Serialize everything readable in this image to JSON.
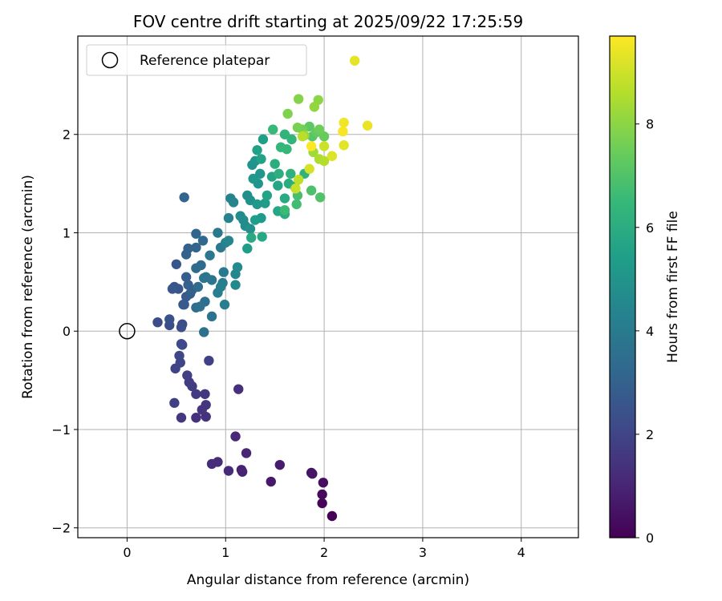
{
  "chart_data": {
    "type": "scatter",
    "title": "FOV centre drift starting at 2025/09/22 17:25:59",
    "xlabel": "Angular distance from reference (arcmin)",
    "ylabel": "Rotation from reference (arcmin)",
    "xlim": [
      -0.5,
      4.58
    ],
    "ylim": [
      -2.1,
      3.0
    ],
    "xticks": [
      {
        "value": 0,
        "label": "0"
      },
      {
        "value": 1,
        "label": "1"
      },
      {
        "value": 2,
        "label": "2"
      },
      {
        "value": 3,
        "label": "3"
      },
      {
        "value": 4,
        "label": "4"
      }
    ],
    "yticks": [
      {
        "value": -2,
        "label": "−2"
      },
      {
        "value": -1,
        "label": "−1"
      },
      {
        "value": 0,
        "label": "0"
      },
      {
        "value": 1,
        "label": "1"
      },
      {
        "value": 2,
        "label": "2"
      }
    ],
    "grid": true,
    "legend": {
      "position": "top-left",
      "entries": [
        {
          "label": "Reference platepar",
          "marker": "open-circle"
        }
      ]
    },
    "reference_point": {
      "x": 0,
      "y": 0
    },
    "colorbar": {
      "label": "Hours from first FF file",
      "range": [
        0,
        9.7
      ],
      "ticks": [
        {
          "value": 0,
          "label": "0"
        },
        {
          "value": 2,
          "label": "2"
        },
        {
          "value": 4,
          "label": "4"
        },
        {
          "value": 6,
          "label": "6"
        },
        {
          "value": 8,
          "label": "8"
        }
      ],
      "colormap": "viridis"
    },
    "points": [
      [
        2.08,
        -1.88,
        0.05
      ],
      [
        1.98,
        -1.75,
        0.15
      ],
      [
        1.98,
        -1.66,
        0.25
      ],
      [
        1.99,
        -1.54,
        0.35
      ],
      [
        1.87,
        -1.44,
        0.45
      ],
      [
        1.88,
        -1.45,
        0.55
      ],
      [
        1.46,
        -1.53,
        0.65
      ],
      [
        1.55,
        -1.36,
        0.75
      ],
      [
        1.16,
        -1.41,
        0.85
      ],
      [
        1.17,
        -1.43,
        0.95
      ],
      [
        1.21,
        -1.24,
        1.05
      ],
      [
        1.1,
        -1.07,
        1.1
      ],
      [
        1.03,
        -1.42,
        1.15
      ],
      [
        0.92,
        -1.33,
        1.2
      ],
      [
        0.86,
        -1.35,
        1.25
      ],
      [
        1.13,
        -0.59,
        1.3
      ],
      [
        0.7,
        -0.88,
        1.35
      ],
      [
        0.8,
        -0.87,
        1.4
      ],
      [
        0.76,
        -0.8,
        1.45
      ],
      [
        0.8,
        -0.75,
        1.5
      ],
      [
        0.55,
        -0.88,
        1.55
      ],
      [
        0.79,
        -0.64,
        1.6
      ],
      [
        0.7,
        -0.64,
        1.65
      ],
      [
        0.66,
        -0.56,
        1.7
      ],
      [
        0.63,
        -0.52,
        1.75
      ],
      [
        0.48,
        -0.73,
        1.8
      ],
      [
        0.61,
        -0.45,
        1.85
      ],
      [
        0.83,
        -0.3,
        1.9
      ],
      [
        0.49,
        -0.38,
        1.95
      ],
      [
        0.54,
        -0.32,
        2.0
      ],
      [
        0.53,
        -0.25,
        2.05
      ],
      [
        0.56,
        -0.14,
        2.1
      ],
      [
        0.55,
        -0.13,
        2.15
      ],
      [
        0.31,
        0.09,
        2.2
      ],
      [
        0.56,
        0.07,
        2.25
      ],
      [
        0.43,
        0.06,
        2.3
      ],
      [
        0.55,
        0.04,
        2.35
      ],
      [
        0.43,
        0.12,
        2.4
      ],
      [
        0.57,
        0.27,
        2.45
      ],
      [
        0.48,
        0.45,
        2.5
      ],
      [
        0.52,
        0.43,
        2.55
      ],
      [
        0.5,
        0.68,
        2.6
      ],
      [
        0.46,
        0.43,
        2.65
      ],
      [
        0.6,
        0.35,
        2.7
      ],
      [
        0.58,
        0.27,
        2.75
      ],
      [
        0.64,
        0.38,
        2.8
      ],
      [
        0.6,
        0.55,
        2.85
      ],
      [
        0.62,
        0.47,
        2.9
      ],
      [
        0.66,
        0.42,
        2.95
      ],
      [
        0.6,
        0.78,
        3.0
      ],
      [
        0.62,
        0.84,
        3.05
      ],
      [
        0.7,
        0.85,
        3.1
      ],
      [
        0.58,
        1.36,
        3.15
      ],
      [
        0.7,
        0.99,
        3.2
      ],
      [
        0.77,
        0.92,
        3.25
      ],
      [
        0.75,
        0.67,
        3.3
      ],
      [
        0.7,
        0.64,
        3.35
      ],
      [
        0.72,
        0.45,
        3.4
      ],
      [
        0.7,
        0.24,
        3.45
      ],
      [
        0.79,
        0.3,
        3.5
      ],
      [
        0.74,
        0.25,
        3.55
      ],
      [
        0.78,
        -0.01,
        3.6
      ],
      [
        0.86,
        0.15,
        3.65
      ],
      [
        0.78,
        0.54,
        3.7
      ],
      [
        0.8,
        0.55,
        3.75
      ],
      [
        0.86,
        0.52,
        3.8
      ],
      [
        0.84,
        0.77,
        3.85
      ],
      [
        0.92,
        1.0,
        3.9
      ],
      [
        0.95,
        0.85,
        3.95
      ],
      [
        0.98,
        0.6,
        4.0
      ],
      [
        0.97,
        0.49,
        4.05
      ],
      [
        0.99,
        0.27,
        4.1
      ],
      [
        0.92,
        0.39,
        4.15
      ],
      [
        0.95,
        0.45,
        4.2
      ],
      [
        1.0,
        0.9,
        4.25
      ],
      [
        1.03,
        1.15,
        4.3
      ],
      [
        1.05,
        1.35,
        4.35
      ],
      [
        1.08,
        1.31,
        4.4
      ],
      [
        1.03,
        0.92,
        4.45
      ],
      [
        1.1,
        0.58,
        4.5
      ],
      [
        1.1,
        0.47,
        4.55
      ],
      [
        1.12,
        0.65,
        4.6
      ],
      [
        1.15,
        1.17,
        4.65
      ],
      [
        1.18,
        1.13,
        4.7
      ],
      [
        1.2,
        1.07,
        4.75
      ],
      [
        1.22,
        1.38,
        4.8
      ],
      [
        1.25,
        1.04,
        4.85
      ],
      [
        1.25,
        1.33,
        4.9
      ],
      [
        1.27,
        1.69,
        4.95
      ],
      [
        1.3,
        1.73,
        5.0
      ],
      [
        1.33,
        1.5,
        5.05
      ],
      [
        1.35,
        1.6,
        5.1
      ],
      [
        1.28,
        1.55,
        5.15
      ],
      [
        1.32,
        1.29,
        5.2
      ],
      [
        1.36,
        1.15,
        5.25
      ],
      [
        1.4,
        1.3,
        5.3
      ],
      [
        1.22,
        0.84,
        5.35
      ],
      [
        1.3,
        1.13,
        5.4
      ],
      [
        1.38,
        1.95,
        5.45
      ],
      [
        1.32,
        1.84,
        5.5
      ],
      [
        1.36,
        1.75,
        5.55
      ],
      [
        1.42,
        1.38,
        5.6
      ],
      [
        1.47,
        1.57,
        5.65
      ],
      [
        1.53,
        1.48,
        5.7
      ],
      [
        1.53,
        1.22,
        5.75
      ],
      [
        1.37,
        0.96,
        5.8
      ],
      [
        1.26,
        0.95,
        5.85
      ],
      [
        1.6,
        1.35,
        5.9
      ],
      [
        1.6,
        1.19,
        5.95
      ],
      [
        1.64,
        1.5,
        6.0
      ],
      [
        1.5,
        1.7,
        6.05
      ],
      [
        1.54,
        1.6,
        6.1
      ],
      [
        1.66,
        1.6,
        6.15
      ],
      [
        1.7,
        1.47,
        6.2
      ],
      [
        1.8,
        1.6,
        6.25
      ],
      [
        1.6,
        2.0,
        6.3
      ],
      [
        1.67,
        1.95,
        6.35
      ],
      [
        1.56,
        1.87,
        6.4
      ],
      [
        1.62,
        1.85,
        6.45
      ],
      [
        1.48,
        2.05,
        6.5
      ],
      [
        1.6,
        1.23,
        6.6
      ],
      [
        1.72,
        1.29,
        6.7
      ],
      [
        1.73,
        1.38,
        6.8
      ],
      [
        1.87,
        1.43,
        6.9
      ],
      [
        1.96,
        1.36,
        7.0
      ],
      [
        1.88,
        1.98,
        7.1
      ],
      [
        1.85,
        2.08,
        7.2
      ],
      [
        1.92,
        2.02,
        7.3
      ],
      [
        2.0,
        1.98,
        7.4
      ],
      [
        1.95,
        2.05,
        7.5
      ],
      [
        1.78,
        2.05,
        7.6
      ],
      [
        1.73,
        2.07,
        7.7
      ],
      [
        1.63,
        2.21,
        7.8
      ],
      [
        1.74,
        2.36,
        7.9
      ],
      [
        1.94,
        2.35,
        8.0
      ],
      [
        1.9,
        2.28,
        8.1
      ],
      [
        1.8,
        1.99,
        8.2
      ],
      [
        1.89,
        1.82,
        8.3
      ],
      [
        1.95,
        1.75,
        8.5
      ],
      [
        2.0,
        1.73,
        8.6
      ],
      [
        1.78,
        1.98,
        8.7
      ],
      [
        1.74,
        1.54,
        8.8
      ],
      [
        1.71,
        1.45,
        8.9
      ],
      [
        2.0,
        1.88,
        9.0
      ],
      [
        1.85,
        1.65,
        9.1
      ],
      [
        2.08,
        1.78,
        9.2
      ],
      [
        2.2,
        1.89,
        9.3
      ],
      [
        2.31,
        2.75,
        9.35
      ],
      [
        2.44,
        2.09,
        9.4
      ],
      [
        2.2,
        2.12,
        9.5
      ],
      [
        2.19,
        2.03,
        9.6
      ],
      [
        1.87,
        1.88,
        9.7
      ]
    ]
  }
}
